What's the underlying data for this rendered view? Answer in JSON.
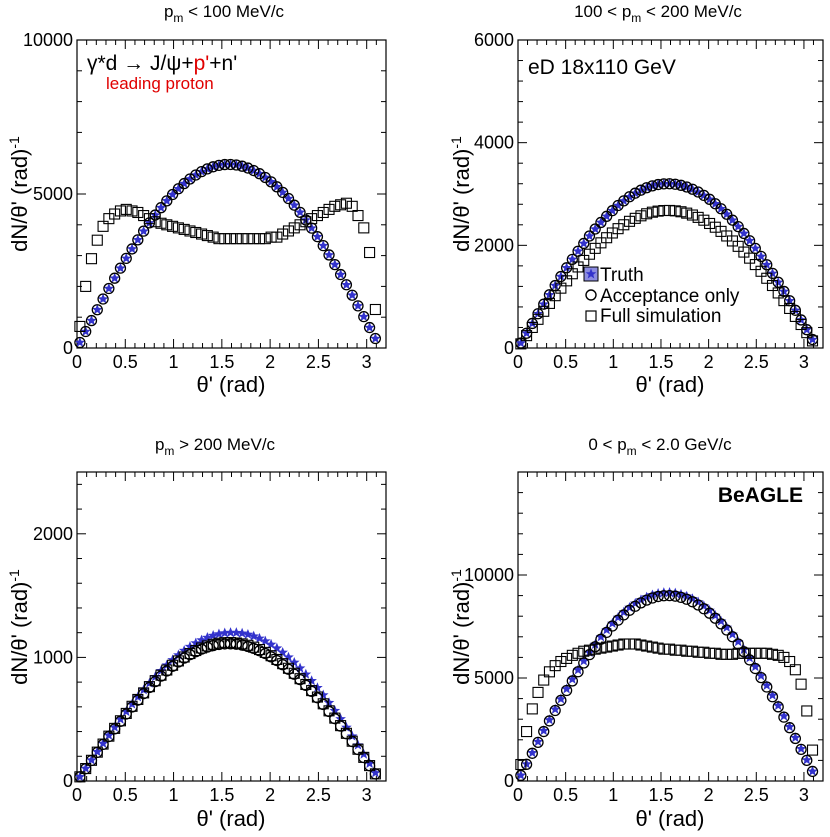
{
  "figure": {
    "colors": {
      "truth": "#3333cc",
      "truth_fill": "#8c8ce0",
      "axis": "#000000",
      "highlight": "#e00000"
    }
  },
  "chart_data": [
    {
      "type": "scatter",
      "title": "p_m < 100 MeV/c",
      "title_main": "p",
      "title_sub": "m",
      "title_rest": " < 100 MeV/c",
      "xlabel": "θ' (rad)",
      "ylabel": "dN/θ' (rad)",
      "ylabel_sup": "-1",
      "xlim": [
        0,
        3.2
      ],
      "ylim": [
        0,
        10000
      ],
      "xticks": [
        0,
        0.5,
        1,
        1.5,
        2,
        2.5,
        3
      ],
      "xtick_labels": [
        "0",
        "0.5",
        "1",
        "1.5",
        "2",
        "2.5",
        "3"
      ],
      "yticks": [
        0,
        5000,
        10000
      ],
      "ytick_labels": [
        "0",
        "5000",
        "10000"
      ],
      "reaction": {
        "pre": "γ*d → J/ψ+",
        "highlight": "p'",
        "post": "+n'",
        "note": "leading proton"
      },
      "series": [
        {
          "name": "Truth",
          "peak": 5960,
          "tilt": 0
        },
        {
          "name": "Acceptance only",
          "peak": 5960,
          "tilt": 0
        },
        {
          "name": "Full simulation",
          "x": [
            0.03,
            0.09,
            0.15,
            0.21,
            0.27,
            0.33,
            0.39,
            0.45,
            0.51,
            0.57,
            0.63,
            0.69,
            0.75,
            0.81,
            0.87,
            0.93,
            0.99,
            1.05,
            1.11,
            1.17,
            1.23,
            1.29,
            1.35,
            1.41,
            1.47,
            1.53,
            1.59,
            1.65,
            1.71,
            1.77,
            1.83,
            1.89,
            1.95,
            2.01,
            2.07,
            2.13,
            2.19,
            2.25,
            2.31,
            2.37,
            2.43,
            2.49,
            2.55,
            2.61,
            2.67,
            2.73,
            2.79,
            2.85,
            2.91,
            2.97,
            3.03,
            3.09
          ],
          "y": [
            700,
            2000,
            2900,
            3500,
            3950,
            4200,
            4350,
            4450,
            4500,
            4450,
            4400,
            4300,
            4200,
            4100,
            4050,
            4000,
            3950,
            3900,
            3850,
            3800,
            3750,
            3700,
            3650,
            3600,
            3550,
            3550,
            3550,
            3550,
            3550,
            3550,
            3550,
            3550,
            3550,
            3600,
            3600,
            3700,
            3800,
            3900,
            4000,
            4100,
            4200,
            4300,
            4400,
            4500,
            4600,
            4650,
            4700,
            4600,
            4300,
            3900,
            3100,
            1250
          ]
        }
      ]
    },
    {
      "type": "scatter",
      "title": "100 < p_m < 200 MeV/c",
      "title_main": "100 < p",
      "title_sub": "m",
      "title_rest": " < 200 MeV/c",
      "xlabel": "θ' (rad)",
      "ylabel": "dN/θ' (rad)",
      "ylabel_sup": "-1",
      "xlim": [
        0,
        3.2
      ],
      "ylim": [
        0,
        6000
      ],
      "xticks": [
        0,
        0.5,
        1,
        1.5,
        2,
        2.5,
        3
      ],
      "xtick_labels": [
        "0",
        "0.5",
        "1",
        "1.5",
        "2",
        "2.5",
        "3"
      ],
      "yticks": [
        0,
        2000,
        4000,
        6000
      ],
      "ytick_labels": [
        "0",
        "2000",
        "4000",
        "6000"
      ],
      "annotation": "eD 18x110 GeV",
      "legend": [
        "Truth",
        "Acceptance only",
        "Full simulation"
      ],
      "series": [
        {
          "name": "Truth",
          "peak": 3200,
          "tilt": 0
        },
        {
          "name": "Acceptance only",
          "peak": 3200,
          "tilt": 0
        },
        {
          "name": "Full simulation",
          "peak": 2680,
          "tilt": 0,
          "floor": 300
        }
      ]
    },
    {
      "type": "scatter",
      "title": "p_m > 200 MeV/c",
      "title_main": "p",
      "title_sub": "m",
      "title_rest": " > 200 MeV/c",
      "xlabel": "θ' (rad)",
      "ylabel": "dN/θ' (rad)",
      "ylabel_sup": "-1",
      "xlim": [
        0,
        3.2
      ],
      "ylim": [
        0,
        2500
      ],
      "xticks": [
        0,
        0.5,
        1,
        1.5,
        2,
        2.5,
        3
      ],
      "xtick_labels": [
        "0",
        "0.5",
        "1",
        "1.5",
        "2",
        "2.5",
        "3"
      ],
      "yticks": [
        0,
        1000,
        2000
      ],
      "ytick_labels": [
        "0",
        "1000",
        "2000"
      ],
      "series": [
        {
          "name": "Truth",
          "peak": 1200,
          "tilt": 0.04
        },
        {
          "name": "Acceptance only",
          "peak": 1110,
          "tilt": 0
        },
        {
          "name": "Full simulation",
          "peak": 1120,
          "tilt": 0
        }
      ]
    },
    {
      "type": "scatter",
      "title": "0 < p_m < 2.0 GeV/c",
      "title_main": "0 < p",
      "title_sub": "m",
      "title_rest": " < 2.0 GeV/c",
      "xlabel": "θ' (rad)",
      "ylabel": "dN/θ' (rad)",
      "ylabel_sup": "-1",
      "xlim": [
        0,
        3.2
      ],
      "ylim": [
        0,
        15000
      ],
      "xticks": [
        0,
        0.5,
        1,
        1.5,
        2,
        2.5,
        3
      ],
      "xtick_labels": [
        "0",
        "0.5",
        "1",
        "1.5",
        "2",
        "2.5",
        "3"
      ],
      "yticks": [
        0,
        5000,
        10000
      ],
      "ytick_labels": [
        "0",
        "5000",
        "10000"
      ],
      "annotation": "BeAGLE",
      "series": [
        {
          "name": "Truth",
          "peak": 9150,
          "tilt": 0
        },
        {
          "name": "Acceptance only",
          "peak": 9000,
          "tilt": 0
        },
        {
          "name": "Full simulation",
          "x": [
            0.03,
            0.09,
            0.15,
            0.21,
            0.27,
            0.33,
            0.39,
            0.45,
            0.51,
            0.57,
            0.63,
            0.69,
            0.75,
            0.81,
            0.87,
            0.93,
            0.99,
            1.05,
            1.11,
            1.17,
            1.23,
            1.29,
            1.35,
            1.41,
            1.47,
            1.53,
            1.59,
            1.65,
            1.71,
            1.77,
            1.83,
            1.89,
            1.95,
            2.01,
            2.07,
            2.13,
            2.19,
            2.25,
            2.31,
            2.37,
            2.43,
            2.49,
            2.55,
            2.61,
            2.67,
            2.73,
            2.79,
            2.85,
            2.91,
            2.97,
            3.03,
            3.09
          ],
          "y": [
            800,
            2400,
            3500,
            4300,
            4900,
            5300,
            5600,
            5800,
            5950,
            6100,
            6200,
            6300,
            6350,
            6400,
            6450,
            6500,
            6550,
            6600,
            6650,
            6650,
            6650,
            6600,
            6550,
            6500,
            6450,
            6400,
            6400,
            6350,
            6350,
            6300,
            6300,
            6250,
            6250,
            6200,
            6200,
            6150,
            6150,
            6150,
            6200,
            6200,
            6200,
            6200,
            6200,
            6200,
            6150,
            6100,
            6000,
            5800,
            5400,
            4700,
            3400,
            1500
          ]
        }
      ]
    }
  ]
}
